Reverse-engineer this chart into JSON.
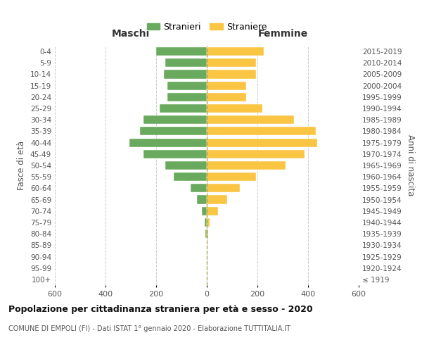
{
  "age_groups": [
    "100+",
    "95-99",
    "90-94",
    "85-89",
    "80-84",
    "75-79",
    "70-74",
    "65-69",
    "60-64",
    "55-59",
    "50-54",
    "45-49",
    "40-44",
    "35-39",
    "30-34",
    "25-29",
    "20-24",
    "15-19",
    "10-14",
    "5-9",
    "0-4"
  ],
  "birth_years": [
    "≤ 1919",
    "1920-1924",
    "1925-1929",
    "1930-1934",
    "1935-1939",
    "1940-1944",
    "1945-1949",
    "1950-1954",
    "1955-1959",
    "1960-1964",
    "1965-1969",
    "1970-1974",
    "1975-1979",
    "1980-1984",
    "1985-1989",
    "1990-1994",
    "1995-1999",
    "2000-2004",
    "2005-2009",
    "2010-2014",
    "2015-2019"
  ],
  "maschi": [
    0,
    0,
    0,
    0,
    5,
    8,
    20,
    40,
    65,
    130,
    165,
    250,
    305,
    265,
    250,
    185,
    155,
    155,
    170,
    165,
    200
  ],
  "femmine": [
    0,
    0,
    0,
    2,
    5,
    10,
    45,
    80,
    130,
    195,
    310,
    385,
    435,
    430,
    345,
    220,
    155,
    155,
    195,
    195,
    225
  ],
  "color_maschi": "#6aaa5e",
  "color_femmine": "#f9c543",
  "background_color": "#ffffff",
  "grid_color": "#cccccc",
  "title": "Popolazione per cittadinanza straniera per età e sesso - 2020",
  "subtitle": "COMUNE DI EMPOLI (FI) - Dati ISTAT 1° gennaio 2020 - Elaborazione TUTTITALIA.IT",
  "xlabel_left": "Maschi",
  "xlabel_right": "Femmine",
  "ylabel_left": "Fasce di età",
  "ylabel_right": "Anni di nascita",
  "legend_maschi": "Stranieri",
  "legend_femmine": "Straniere",
  "xlim": 600
}
